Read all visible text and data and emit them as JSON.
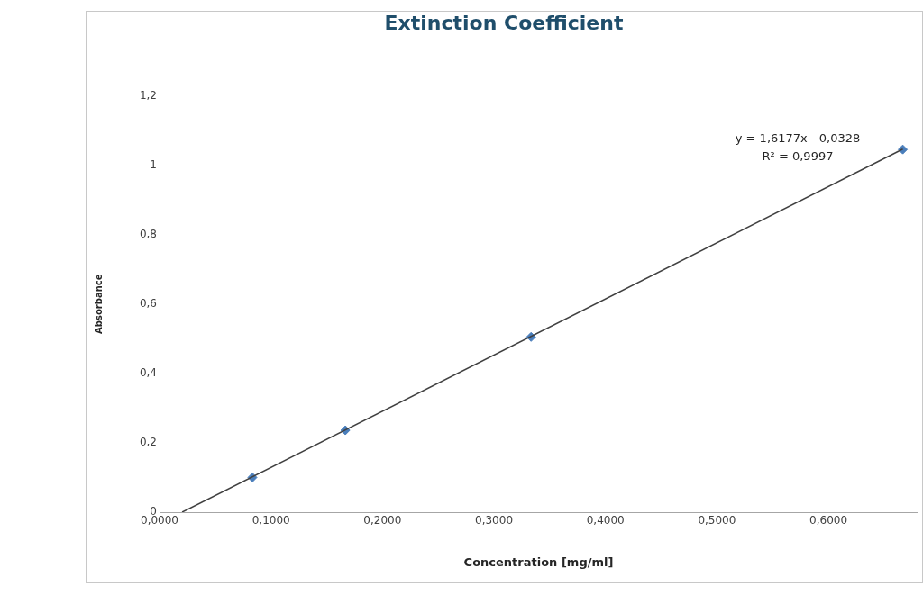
{
  "chart_data": {
    "type": "scatter",
    "title": "Extinction Coefficient",
    "xlabel": "Concentration [mg/ml]",
    "ylabel": "Absorbance",
    "xlim": [
      0,
      0.68
    ],
    "ylim": [
      0,
      1.2
    ],
    "xticks": [
      {
        "value": 0,
        "label": "0,0000"
      },
      {
        "value": 0.1,
        "label": "0,1000"
      },
      {
        "value": 0.2,
        "label": "0,2000"
      },
      {
        "value": 0.3,
        "label": "0,3000"
      },
      {
        "value": 0.4,
        "label": "0,4000"
      },
      {
        "value": 0.5,
        "label": "0,5000"
      },
      {
        "value": 0.6,
        "label": "0,6000"
      }
    ],
    "yticks": [
      0,
      {
        "value": 0.2,
        "label": "0,2"
      },
      {
        "value": 0.4,
        "label": "0,4"
      },
      {
        "value": 0.6,
        "label": "0,6"
      },
      {
        "value": 0.8,
        "label": "0,8"
      },
      1,
      {
        "value": 1.2,
        "label": "1,2"
      }
    ],
    "marker": "diamond",
    "grid": false,
    "legend": false,
    "annotations": [
      "y = 1,6177x - 0,0328",
      "R² = 0,9997"
    ],
    "series": [
      {
        "color": "#4a7ebb",
        "x": [
          0.0833,
          0.1667,
          0.3333,
          0.6667
        ],
        "values": [
          0.1,
          0.236,
          0.505,
          1.045
        ]
      },
      {
        "type": "line",
        "color": "#404040",
        "marker": "none",
        "x": [
          0.0203,
          0.6667
        ],
        "values": [
          0,
          1.046
        ]
      }
    ]
  }
}
